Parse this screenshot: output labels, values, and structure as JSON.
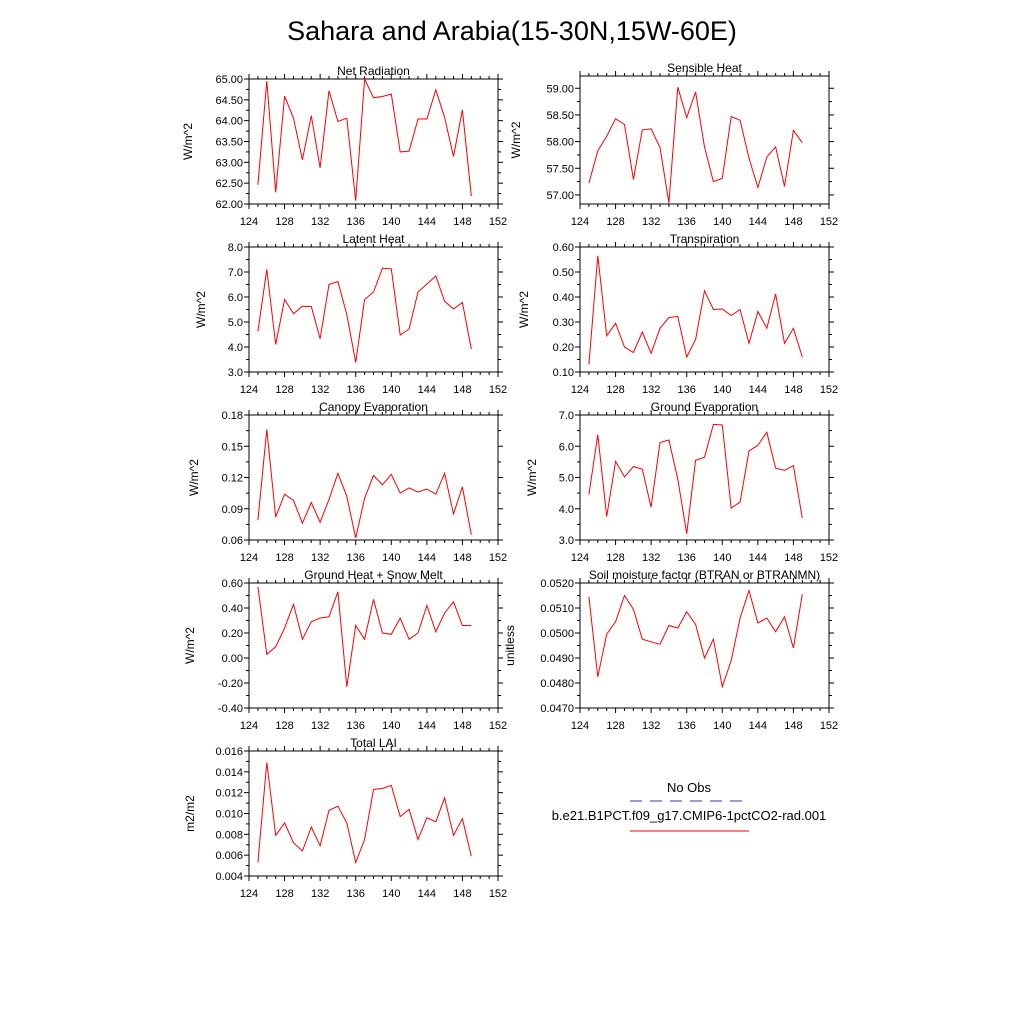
{
  "title": "Sahara and Arabia(15-30N,15W-60E)",
  "colors": {
    "model": "#ff0000",
    "obs": "#3a3aa8",
    "axis": "#000000"
  },
  "legend": {
    "obs_label": "No Obs",
    "model_label": "b.e21.B1PCT.f09_g17.CMIP6-1pctCO2-rad.001"
  },
  "chart_data": [
    {
      "type": "line",
      "title": "Net Radiation",
      "xlabel": "",
      "ylabel": "W/m^2",
      "xlim": [
        124,
        152
      ],
      "ylim": [
        62.0,
        65.0
      ],
      "xticks": [
        124,
        128,
        132,
        136,
        140,
        144,
        148,
        152
      ],
      "xtick_labels": [
        "124",
        "128",
        "132",
        "136",
        "140",
        "144",
        "148",
        "152"
      ],
      "yticks": [
        62.0,
        62.5,
        63.0,
        63.5,
        64.0,
        64.5,
        65.0
      ],
      "ytick_labels": [
        "62.00",
        "62.50",
        "63.00",
        "63.50",
        "64.00",
        "64.50",
        "65.00"
      ],
      "x": [
        125,
        126,
        127,
        128,
        129,
        130,
        131,
        132,
        133,
        134,
        135,
        136,
        137,
        138,
        139,
        140,
        141,
        142,
        143,
        144,
        145,
        146,
        147,
        148,
        149
      ],
      "series": [
        {
          "values": [
            62.46,
            64.95,
            62.28,
            64.59,
            64.06,
            63.06,
            64.12,
            62.87,
            64.72,
            63.98,
            64.06,
            62.08,
            65.0,
            64.55,
            64.58,
            64.64,
            63.25,
            63.27,
            64.04,
            64.04,
            64.74,
            64.08,
            63.14,
            64.26,
            62.19
          ]
        }
      ]
    },
    {
      "type": "line",
      "title": "Sensible Heat",
      "xlabel": "",
      "ylabel": "W/m^2",
      "xlim": [
        124,
        152
      ],
      "ylim": [
        56.83,
        59.23
      ],
      "xticks": [
        124,
        128,
        132,
        136,
        140,
        144,
        148,
        152
      ],
      "xtick_labels": [
        "124",
        "128",
        "132",
        "136",
        "140",
        "144",
        "148",
        "152"
      ],
      "yticks": [
        57.0,
        57.5,
        58.0,
        58.5,
        59.0
      ],
      "ytick_labels": [
        "57.00",
        "57.50",
        "58.00",
        "58.50",
        "59.00"
      ],
      "x": [
        125,
        126,
        127,
        128,
        129,
        130,
        131,
        132,
        133,
        134,
        135,
        136,
        137,
        138,
        139,
        140,
        141,
        142,
        143,
        144,
        145,
        146,
        147,
        148,
        149
      ],
      "series": [
        {
          "values": [
            57.22,
            57.83,
            58.1,
            58.43,
            58.32,
            57.29,
            58.22,
            58.24,
            57.89,
            56.85,
            59.02,
            58.45,
            58.93,
            57.9,
            57.25,
            57.31,
            58.47,
            58.4,
            57.69,
            57.14,
            57.71,
            57.9,
            57.16,
            58.21,
            57.98
          ]
        }
      ]
    },
    {
      "type": "line",
      "title": "Latent Heat",
      "xlabel": "",
      "ylabel": "W/m^2",
      "xlim": [
        124,
        152
      ],
      "ylim": [
        3.0,
        8.0
      ],
      "xticks": [
        124,
        128,
        132,
        136,
        140,
        144,
        148,
        152
      ],
      "xtick_labels": [
        "124",
        "128",
        "132",
        "136",
        "140",
        "144",
        "148",
        "152"
      ],
      "yticks": [
        3.0,
        4.0,
        5.0,
        6.0,
        7.0,
        8.0
      ],
      "ytick_labels": [
        "3.0",
        "4.0",
        "5.0",
        "6.0",
        "7.0",
        "8.0"
      ],
      "x": [
        125,
        126,
        127,
        128,
        129,
        130,
        131,
        132,
        133,
        134,
        135,
        136,
        137,
        138,
        139,
        140,
        141,
        142,
        143,
        144,
        145,
        146,
        147,
        148,
        149
      ],
      "series": [
        {
          "values": [
            4.62,
            7.1,
            4.1,
            5.9,
            5.33,
            5.63,
            5.62,
            4.33,
            6.5,
            6.62,
            5.3,
            3.38,
            5.9,
            6.2,
            7.15,
            7.13,
            4.48,
            4.72,
            6.2,
            6.52,
            6.84,
            5.83,
            5.52,
            5.78,
            3.92
          ]
        }
      ]
    },
    {
      "type": "line",
      "title": "Transpiration",
      "xlabel": "",
      "ylabel": "W/m^2",
      "xlim": [
        124,
        152
      ],
      "ylim": [
        0.1,
        0.6
      ],
      "xticks": [
        124,
        128,
        132,
        136,
        140,
        144,
        148,
        152
      ],
      "xtick_labels": [
        "124",
        "128",
        "132",
        "136",
        "140",
        "144",
        "148",
        "152"
      ],
      "yticks": [
        0.1,
        0.2,
        0.3,
        0.4,
        0.5,
        0.6
      ],
      "ytick_labels": [
        "0.10",
        "0.20",
        "0.30",
        "0.40",
        "0.50",
        "0.60"
      ],
      "x": [
        125,
        126,
        127,
        128,
        129,
        130,
        131,
        132,
        133,
        134,
        135,
        136,
        137,
        138,
        139,
        140,
        141,
        142,
        143,
        144,
        145,
        146,
        147,
        148,
        149
      ],
      "series": [
        {
          "values": [
            0.13,
            0.565,
            0.245,
            0.295,
            0.2,
            0.178,
            0.26,
            0.175,
            0.275,
            0.318,
            0.322,
            0.16,
            0.23,
            0.425,
            0.35,
            0.352,
            0.326,
            0.35,
            0.215,
            0.342,
            0.275,
            0.412,
            0.215,
            0.275,
            0.16
          ]
        }
      ]
    },
    {
      "type": "line",
      "title": "Canopy Evaporation",
      "xlabel": "",
      "ylabel": "W/m^2",
      "xlim": [
        124,
        152
      ],
      "ylim": [
        0.06,
        0.18
      ],
      "xticks": [
        124,
        128,
        132,
        136,
        140,
        144,
        148,
        152
      ],
      "xtick_labels": [
        "124",
        "128",
        "132",
        "136",
        "140",
        "144",
        "148",
        "152"
      ],
      "yticks": [
        0.06,
        0.09,
        0.12,
        0.15,
        0.18
      ],
      "ytick_labels": [
        "0.06",
        "0.09",
        "0.12",
        "0.15",
        "0.18"
      ],
      "x": [
        125,
        126,
        127,
        128,
        129,
        130,
        131,
        132,
        133,
        134,
        135,
        136,
        137,
        138,
        139,
        140,
        141,
        142,
        143,
        144,
        145,
        146,
        147,
        148,
        149
      ],
      "series": [
        {
          "values": [
            0.079,
            0.166,
            0.082,
            0.104,
            0.098,
            0.076,
            0.096,
            0.077,
            0.099,
            0.124,
            0.102,
            0.062,
            0.1,
            0.122,
            0.113,
            0.123,
            0.105,
            0.11,
            0.106,
            0.109,
            0.104,
            0.124,
            0.085,
            0.111,
            0.065
          ]
        }
      ]
    },
    {
      "type": "line",
      "title": "Ground Evaporation",
      "xlabel": "",
      "ylabel": "W/m^2",
      "xlim": [
        124,
        152
      ],
      "ylim": [
        3.0,
        7.0
      ],
      "xticks": [
        124,
        128,
        132,
        136,
        140,
        144,
        148,
        152
      ],
      "xtick_labels": [
        "124",
        "128",
        "132",
        "136",
        "140",
        "144",
        "148",
        "152"
      ],
      "yticks": [
        3.0,
        4.0,
        5.0,
        6.0,
        7.0
      ],
      "ytick_labels": [
        "3.0",
        "4.0",
        "5.0",
        "6.0",
        "7.0"
      ],
      "x": [
        125,
        126,
        127,
        128,
        129,
        130,
        131,
        132,
        133,
        134,
        135,
        136,
        137,
        138,
        139,
        140,
        141,
        142,
        143,
        144,
        145,
        146,
        147,
        148,
        149
      ],
      "series": [
        {
          "values": [
            4.45,
            6.37,
            3.75,
            5.52,
            5.02,
            5.35,
            5.27,
            4.05,
            6.12,
            6.2,
            4.95,
            3.2,
            5.55,
            5.65,
            6.7,
            6.68,
            4.02,
            4.22,
            5.85,
            6.03,
            6.45,
            5.3,
            5.23,
            5.38,
            3.7
          ]
        }
      ]
    },
    {
      "type": "line",
      "title": "Ground Heat + Snow Melt",
      "xlabel": "",
      "ylabel": "W/m^2",
      "xlim": [
        124,
        152
      ],
      "ylim": [
        -0.4,
        0.6
      ],
      "xticks": [
        124,
        128,
        132,
        136,
        140,
        144,
        148,
        152
      ],
      "xtick_labels": [
        "124",
        "128",
        "132",
        "136",
        "140",
        "144",
        "148",
        "152"
      ],
      "yticks": [
        -0.4,
        -0.2,
        0.0,
        0.2,
        0.4,
        0.6
      ],
      "ytick_labels": [
        "-0.40",
        "-0.20",
        "0.00",
        "0.20",
        "0.40",
        "0.60"
      ],
      "x": [
        125,
        126,
        127,
        128,
        129,
        130,
        131,
        132,
        133,
        134,
        135,
        136,
        137,
        138,
        139,
        140,
        141,
        142,
        143,
        144,
        145,
        146,
        147,
        148,
        149
      ],
      "series": [
        {
          "values": [
            0.57,
            0.03,
            0.09,
            0.24,
            0.43,
            0.15,
            0.29,
            0.32,
            0.33,
            0.53,
            -0.23,
            0.26,
            0.15,
            0.47,
            0.2,
            0.19,
            0.32,
            0.15,
            0.2,
            0.42,
            0.21,
            0.36,
            0.45,
            0.26,
            0.26
          ]
        }
      ]
    },
    {
      "type": "line",
      "title": "Soil moisture factor (BTRAN or BTRANMN)",
      "xlabel": "",
      "ylabel": "unitless",
      "xlim": [
        124,
        152
      ],
      "ylim": [
        0.047,
        0.052
      ],
      "xticks": [
        124,
        128,
        132,
        136,
        140,
        144,
        148,
        152
      ],
      "xtick_labels": [
        "124",
        "128",
        "132",
        "136",
        "140",
        "144",
        "148",
        "152"
      ],
      "yticks": [
        0.047,
        0.048,
        0.049,
        0.05,
        0.051,
        0.052
      ],
      "ytick_labels": [
        "0.0470",
        "0.0480",
        "0.0490",
        "0.0500",
        "0.0510",
        "0.0520"
      ],
      "x": [
        125,
        126,
        127,
        128,
        129,
        130,
        131,
        132,
        133,
        134,
        135,
        136,
        137,
        138,
        139,
        140,
        141,
        142,
        143,
        144,
        145,
        146,
        147,
        148,
        149
      ],
      "series": [
        {
          "values": [
            0.05145,
            0.04825,
            0.04995,
            0.05045,
            0.0515,
            0.05095,
            0.04975,
            0.04965,
            0.04955,
            0.0503,
            0.0502,
            0.05085,
            0.05035,
            0.049,
            0.04975,
            0.04785,
            0.0489,
            0.0506,
            0.0517,
            0.0504,
            0.0506,
            0.05005,
            0.05065,
            0.0494,
            0.05155
          ]
        }
      ]
    },
    {
      "type": "line",
      "title": "Total LAI",
      "xlabel": "",
      "ylabel": "m2/m2",
      "xlim": [
        124,
        152
      ],
      "ylim": [
        0.004,
        0.016
      ],
      "xticks": [
        124,
        128,
        132,
        136,
        140,
        144,
        148,
        152
      ],
      "xtick_labels": [
        "124",
        "128",
        "132",
        "136",
        "140",
        "144",
        "148",
        "152"
      ],
      "yticks": [
        0.004,
        0.006,
        0.008,
        0.01,
        0.012,
        0.014,
        0.016
      ],
      "ytick_labels": [
        "0.004",
        "0.006",
        "0.008",
        "0.010",
        "0.012",
        "0.014",
        "0.016"
      ],
      "x": [
        125,
        126,
        127,
        128,
        129,
        130,
        131,
        132,
        133,
        134,
        135,
        136,
        137,
        138,
        139,
        140,
        141,
        142,
        143,
        144,
        145,
        146,
        147,
        148,
        149
      ],
      "series": [
        {
          "values": [
            0.0053,
            0.0149,
            0.0079,
            0.0091,
            0.0072,
            0.0064,
            0.0087,
            0.0069,
            0.0103,
            0.0107,
            0.0091,
            0.0053,
            0.0075,
            0.0123,
            0.0124,
            0.0127,
            0.0097,
            0.0104,
            0.0075,
            0.0096,
            0.0092,
            0.0115,
            0.0079,
            0.0095,
            0.0059
          ]
        }
      ]
    }
  ]
}
